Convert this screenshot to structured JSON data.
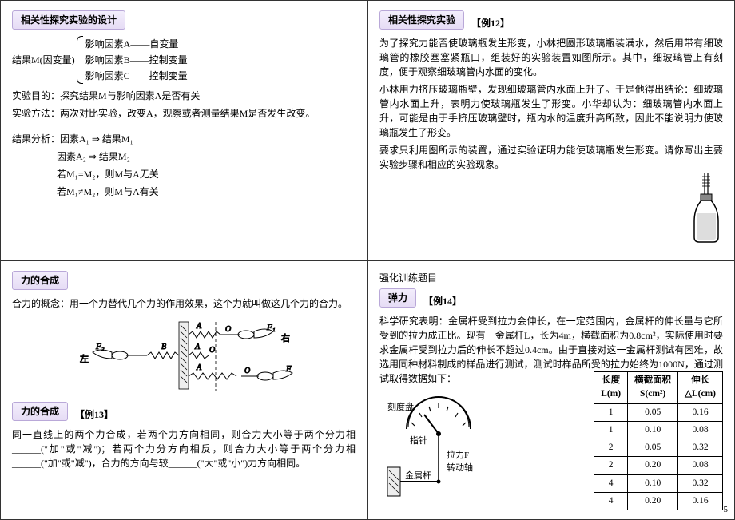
{
  "tl": {
    "tag": "相关性探究实验的设计",
    "resultLabel": "结果M(因变量)",
    "factors": [
      "影响因素A——自变量",
      "影响因素B——控制变量",
      "影响因素C——控制变量"
    ],
    "purposeLabel": "实验目的：",
    "purpose": "探究结果M与影响因素A是否有关",
    "methodLabel": "实验方法：",
    "method": "两次对比实验，改变A，观察或者测量结果M是否发生改变。",
    "analysisLabel": "结果分析：",
    "a1": "因素A₁ ⇒ 结果M₁",
    "a2": "因素A₂ ⇒ 结果M₂",
    "c1": "若M₁=M₂，则M与A无关",
    "c2": "若M₁≠M₂，则M与A有关"
  },
  "tr": {
    "tag": "相关性探究实验",
    "ex": "【例12】",
    "p1": "为了探究力能否使玻璃瓶发生形变，小林把圆形玻璃瓶装满水，然后用带有细玻璃管的橡胶塞塞紧瓶口，组装好的实验装置如图所示。其中，细玻璃管上有刻度，便于观察细玻璃管内水面的变化。",
    "p2": "小林用力挤压玻璃瓶壁，发现细玻璃管内水面上升了。于是他得出结论：细玻璃管内水面上升，表明力使玻璃瓶发生了形变。小华却认为：细玻璃管内水面上升，可能是由于手挤压玻璃壁时，瓶内水的温度升高所致，因此不能说明力使玻璃瓶发生了形变。",
    "p3": "要求只利用图所示的装置，通过实验证明力能使玻璃瓶发生形变。请你写出主要实验步骤和相应的实验现象。"
  },
  "bl": {
    "tag1": "力的合成",
    "concept": "合力的概念：用一个力替代几个力的作用效果，这个力就叫做这几个力的合力。",
    "tag2": "力的合成",
    "ex": "【例13】",
    "rule": "同一直线上的两个力合成，若两个力方向相同，则合力大小等于两个分力相______(\"加\"或\"减\")；若两个力分方向相反，则合力大小等于两个分力相______(\"加\"或\"减\")，合力的方向与较______(\"大\"或\"小\")力方向相同。",
    "diagram": {
      "leftLabel": "左",
      "rightLabel": "右",
      "F1": "F₁",
      "F2": "F₂",
      "A": "A",
      "B": "B",
      "O": "O"
    }
  },
  "br": {
    "header": "强化训练题目",
    "tag": "弹力",
    "ex": "【例14】",
    "body": "科学研究表明：金属杆受到拉力会伸长，在一定范围内，金属杆的伸长量与它所受到的拉力成正比。现有一金属杆L，长为4m，横截面积为0.8cm²，实际使用时要求金属杆受到拉力后的伸长不超过0.4cm。由于直接对这一金属杆测试有困难，故选用同种材料制成的样品进行测试，测试时样品所受的拉力始终为1000N，通过测试取得数据如下：",
    "gauge": {
      "dial": "刻度盘",
      "needle": "指针",
      "force": "拉力F",
      "axis": "转动轴",
      "bar": "金属杆"
    },
    "table": {
      "headers": [
        "长度\nL(m)",
        "横截面积\nS(cm²)",
        "伸长\n△L(cm)"
      ],
      "rows": [
        [
          "1",
          "0.05",
          "0.16"
        ],
        [
          "1",
          "0.10",
          "0.08"
        ],
        [
          "2",
          "0.05",
          "0.32"
        ],
        [
          "2",
          "0.20",
          "0.08"
        ],
        [
          "4",
          "0.10",
          "0.32"
        ],
        [
          "4",
          "0.20",
          "0.16"
        ]
      ]
    },
    "page": "5"
  }
}
